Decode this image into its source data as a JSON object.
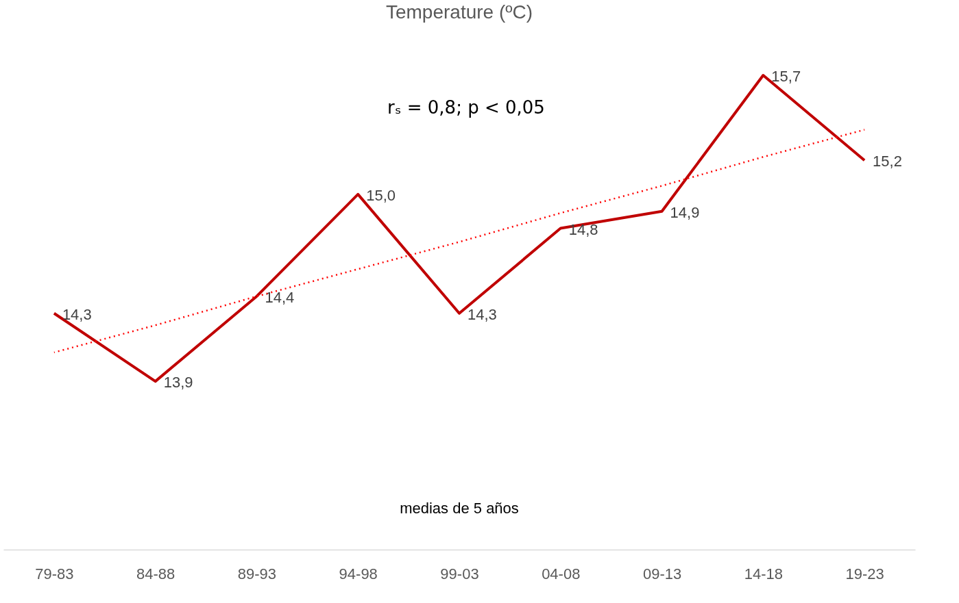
{
  "chart_data": {
    "type": "line",
    "title": "Temperature (ºC)",
    "xlabel": "medias de 5 años",
    "categories": [
      "79-83",
      "84-88",
      "89-93",
      "94-98",
      "99-03",
      "04-08",
      "09-13",
      "14-18",
      "19-23"
    ],
    "series": [
      {
        "name": null,
        "color": "#c00000",
        "values": [
          14.3,
          13.9,
          14.4,
          15.0,
          14.3,
          14.8,
          14.9,
          15.7,
          15.2
        ],
        "value_labels": [
          "14,3",
          "13,9",
          "14,4",
          "15,0",
          "14,3",
          "14,8",
          "14,9",
          "15,7",
          "15,2"
        ]
      },
      {
        "type": "line",
        "color": "#ff0000",
        "line_style": "dotted",
        "values": [
          14.07,
          14.23,
          14.4,
          14.56,
          14.72,
          14.89,
          15.05,
          15.22,
          15.38
        ]
      }
    ],
    "annotations": [
      "rₛ = 0,8; p < 0,05"
    ],
    "tick_labels": "x",
    "grid": false,
    "marker": "none",
    "line_style": "solid"
  }
}
